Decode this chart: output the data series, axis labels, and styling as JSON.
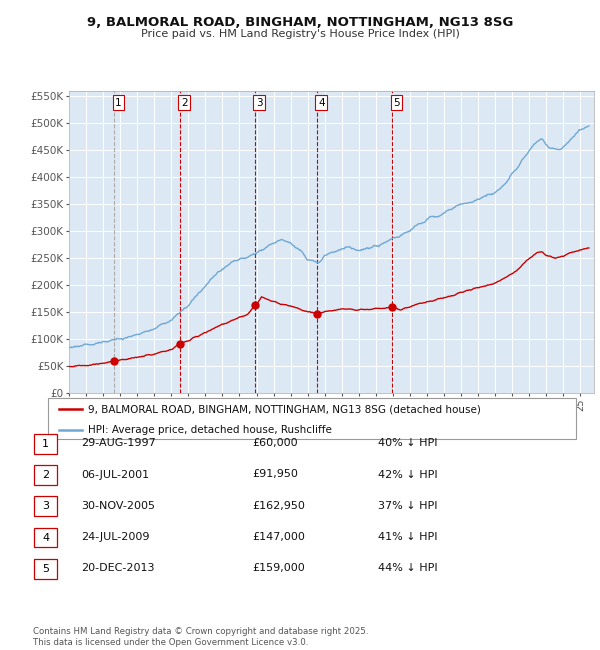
{
  "title_line1": "9, BALMORAL ROAD, BINGHAM, NOTTINGHAM, NG13 8SG",
  "title_line2": "Price paid vs. HM Land Registry's House Price Index (HPI)",
  "legend_line1": "9, BALMORAL ROAD, BINGHAM, NOTTINGHAM, NG13 8SG (detached house)",
  "legend_line2": "HPI: Average price, detached house, Rushcliffe",
  "footer": "Contains HM Land Registry data © Crown copyright and database right 2025.\nThis data is licensed under the Open Government Licence v3.0.",
  "transactions": [
    {
      "num": 1,
      "date": "29-AUG-1997",
      "date_x": 1997.66,
      "price": 60000,
      "hpi_pct": "40% ↓ HPI"
    },
    {
      "num": 2,
      "date": "06-JUL-2001",
      "date_x": 2001.51,
      "price": 91950,
      "hpi_pct": "42% ↓ HPI"
    },
    {
      "num": 3,
      "date": "30-NOV-2005",
      "date_x": 2005.92,
      "price": 162950,
      "hpi_pct": "37% ↓ HPI"
    },
    {
      "num": 4,
      "date": "24-JUL-2009",
      "date_x": 2009.56,
      "price": 147000,
      "hpi_pct": "41% ↓ HPI"
    },
    {
      "num": 5,
      "date": "20-DEC-2013",
      "date_x": 2013.97,
      "price": 159000,
      "hpi_pct": "44% ↓ HPI"
    }
  ],
  "hpi_color": "#6fa8d4",
  "price_color": "#cc0000",
  "plot_bg_color": "#dce9f5",
  "grid_color": "#ffffff",
  "ylim": [
    0,
    560000
  ],
  "xlim_start": 1995.0,
  "xlim_end": 2025.8,
  "yticks": [
    0,
    50000,
    100000,
    150000,
    200000,
    250000,
    300000,
    350000,
    400000,
    450000,
    500000,
    550000
  ],
  "ytick_labels": [
    "£0",
    "£50K",
    "£100K",
    "£150K",
    "£200K",
    "£250K",
    "£300K",
    "£350K",
    "£400K",
    "£450K",
    "£500K",
    "£550K"
  ],
  "hpi_key_points": [
    [
      1995.0,
      85000
    ],
    [
      1996.0,
      90000
    ],
    [
      1997.0,
      94000
    ],
    [
      1998.0,
      100000
    ],
    [
      1999.0,
      108000
    ],
    [
      2000.0,
      120000
    ],
    [
      2001.0,
      135000
    ],
    [
      2002.0,
      163000
    ],
    [
      2003.0,
      198000
    ],
    [
      2004.0,
      232000
    ],
    [
      2005.0,
      248000
    ],
    [
      2006.0,
      260000
    ],
    [
      2006.5,
      268000
    ],
    [
      2007.0,
      278000
    ],
    [
      2007.5,
      285000
    ],
    [
      2008.0,
      278000
    ],
    [
      2008.5,
      265000
    ],
    [
      2009.0,
      248000
    ],
    [
      2009.5,
      242000
    ],
    [
      2010.0,
      255000
    ],
    [
      2010.5,
      262000
    ],
    [
      2011.0,
      268000
    ],
    [
      2011.5,
      270000
    ],
    [
      2012.0,
      265000
    ],
    [
      2012.5,
      268000
    ],
    [
      2013.0,
      273000
    ],
    [
      2013.5,
      278000
    ],
    [
      2014.0,
      285000
    ],
    [
      2014.5,
      292000
    ],
    [
      2015.0,
      302000
    ],
    [
      2015.5,
      312000
    ],
    [
      2016.0,
      322000
    ],
    [
      2016.5,
      328000
    ],
    [
      2017.0,
      335000
    ],
    [
      2017.5,
      342000
    ],
    [
      2018.0,
      348000
    ],
    [
      2018.5,
      355000
    ],
    [
      2019.0,
      360000
    ],
    [
      2019.5,
      365000
    ],
    [
      2020.0,
      370000
    ],
    [
      2020.5,
      385000
    ],
    [
      2021.0,
      405000
    ],
    [
      2021.5,
      428000
    ],
    [
      2022.0,
      450000
    ],
    [
      2022.5,
      468000
    ],
    [
      2022.75,
      472000
    ],
    [
      2023.0,
      460000
    ],
    [
      2023.5,
      450000
    ],
    [
      2024.0,
      457000
    ],
    [
      2024.5,
      472000
    ],
    [
      2025.0,
      488000
    ],
    [
      2025.5,
      495000
    ]
  ],
  "red_key_points": [
    [
      1995.0,
      50000
    ],
    [
      1996.0,
      52000
    ],
    [
      1997.0,
      55000
    ],
    [
      1997.66,
      60000
    ],
    [
      1998.0,
      62000
    ],
    [
      1999.0,
      66000
    ],
    [
      2000.0,
      73000
    ],
    [
      2001.0,
      81000
    ],
    [
      2001.51,
      91950
    ],
    [
      2002.0,
      97000
    ],
    [
      2003.0,
      112000
    ],
    [
      2004.0,
      128000
    ],
    [
      2005.0,
      140000
    ],
    [
      2005.5,
      148000
    ],
    [
      2005.92,
      162950
    ],
    [
      2006.0,
      165000
    ],
    [
      2006.3,
      178000
    ],
    [
      2006.7,
      175000
    ],
    [
      2007.0,
      170000
    ],
    [
      2007.5,
      165000
    ],
    [
      2008.0,
      162000
    ],
    [
      2008.5,
      157000
    ],
    [
      2009.0,
      151000
    ],
    [
      2009.56,
      147000
    ],
    [
      2010.0,
      150000
    ],
    [
      2010.5,
      153000
    ],
    [
      2011.0,
      156000
    ],
    [
      2011.5,
      155000
    ],
    [
      2012.0,
      153000
    ],
    [
      2012.5,
      155000
    ],
    [
      2013.0,
      157000
    ],
    [
      2013.97,
      159000
    ],
    [
      2014.0,
      158000
    ],
    [
      2014.5,
      155000
    ],
    [
      2015.0,
      161000
    ],
    [
      2015.5,
      166000
    ],
    [
      2016.0,
      170000
    ],
    [
      2016.5,
      173000
    ],
    [
      2017.0,
      177000
    ],
    [
      2017.5,
      182000
    ],
    [
      2018.0,
      187000
    ],
    [
      2018.5,
      192000
    ],
    [
      2019.0,
      196000
    ],
    [
      2019.5,
      200000
    ],
    [
      2020.0,
      204000
    ],
    [
      2020.5,
      212000
    ],
    [
      2021.0,
      222000
    ],
    [
      2021.5,
      235000
    ],
    [
      2022.0,
      250000
    ],
    [
      2022.5,
      260000
    ],
    [
      2022.75,
      263000
    ],
    [
      2023.0,
      256000
    ],
    [
      2023.5,
      250000
    ],
    [
      2024.0,
      254000
    ],
    [
      2024.5,
      261000
    ],
    [
      2025.0,
      266000
    ],
    [
      2025.5,
      269000
    ]
  ]
}
